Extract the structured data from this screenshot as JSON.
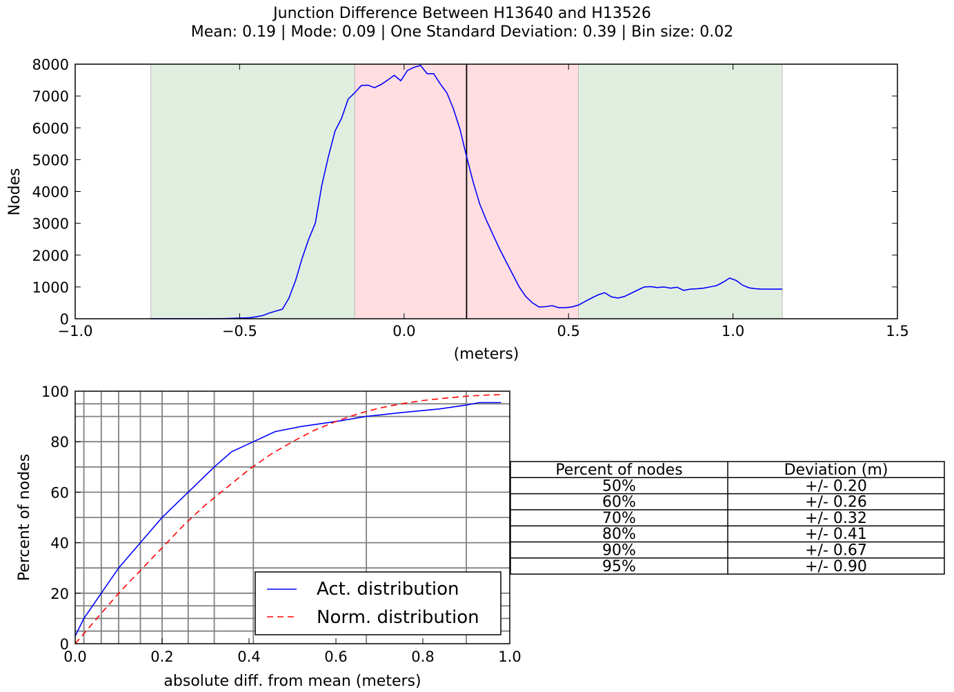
{
  "title": {
    "line1": "Junction Difference Between H13640 and H13526",
    "line2": "Mean: 0.19 | Mode: 0.09 | One Standard Deviation: 0.39 | Bin size: 0.02"
  },
  "colors": {
    "line": "#0000ff",
    "norm": "#ff0000",
    "band_outer": "#e0eee0",
    "band_inner": "#ffdde1",
    "grid": "#808080"
  },
  "chart_data": [
    {
      "type": "line",
      "name": "histogram",
      "xlabel": "(meters)",
      "ylabel": "Nodes",
      "xlim": [
        -1.0,
        1.5
      ],
      "ylim": [
        0,
        8000
      ],
      "xticks": [
        "−1.0",
        "−0.5",
        "0.0",
        "0.5",
        "1.0",
        "1.5"
      ],
      "xtick_values": [
        -1.0,
        -0.5,
        0.0,
        0.5,
        1.0,
        1.5
      ],
      "yticks": [
        "0",
        "1000",
        "2000",
        "3000",
        "4000",
        "5000",
        "6000",
        "7000",
        "8000"
      ],
      "ytick_values": [
        0,
        1000,
        2000,
        3000,
        4000,
        5000,
        6000,
        7000,
        8000
      ],
      "bands": [
        {
          "from": -0.77,
          "to": -0.15,
          "kind": "outer"
        },
        {
          "from": -0.15,
          "to": 0.53,
          "kind": "inner"
        },
        {
          "from": 0.53,
          "to": 1.15,
          "kind": "outer"
        }
      ],
      "mean_line": 0.19,
      "x": [
        -0.77,
        -0.7,
        -0.6,
        -0.55,
        -0.5,
        -0.47,
        -0.45,
        -0.43,
        -0.41,
        -0.39,
        -0.37,
        -0.35,
        -0.33,
        -0.31,
        -0.29,
        -0.27,
        -0.25,
        -0.23,
        -0.21,
        -0.19,
        -0.17,
        -0.15,
        -0.13,
        -0.11,
        -0.09,
        -0.07,
        -0.05,
        -0.03,
        -0.01,
        0.01,
        0.03,
        0.05,
        0.07,
        0.09,
        0.11,
        0.13,
        0.15,
        0.17,
        0.19,
        0.21,
        0.23,
        0.25,
        0.27,
        0.29,
        0.31,
        0.33,
        0.35,
        0.37,
        0.39,
        0.41,
        0.43,
        0.45,
        0.47,
        0.49,
        0.51,
        0.53,
        0.55,
        0.57,
        0.59,
        0.61,
        0.63,
        0.65,
        0.67,
        0.69,
        0.71,
        0.73,
        0.75,
        0.77,
        0.79,
        0.81,
        0.83,
        0.85,
        0.87,
        0.89,
        0.91,
        0.93,
        0.95,
        0.97,
        0.99,
        1.01,
        1.03,
        1.05,
        1.07,
        1.09,
        1.11,
        1.13,
        1.15
      ],
      "values": [
        0,
        0,
        0,
        5,
        20,
        30,
        60,
        100,
        180,
        240,
        300,
        650,
        1200,
        1900,
        2500,
        3000,
        4200,
        5100,
        5900,
        6300,
        6900,
        7100,
        7330,
        7340,
        7260,
        7360,
        7500,
        7650,
        7480,
        7800,
        7900,
        7960,
        7700,
        7700,
        7380,
        7100,
        6600,
        5950,
        5100,
        4300,
        3600,
        3100,
        2650,
        2200,
        1800,
        1400,
        1000,
        700,
        500,
        370,
        380,
        410,
        350,
        350,
        370,
        430,
        540,
        650,
        750,
        820,
        690,
        650,
        700,
        800,
        900,
        1000,
        1010,
        980,
        1000,
        960,
        990,
        890,
        930,
        940,
        960,
        1000,
        1040,
        1150,
        1280,
        1200,
        1050,
        970,
        940,
        930,
        930,
        930,
        930
      ]
    },
    {
      "type": "line",
      "name": "cumulative",
      "xlabel": "absolute diff. from mean (meters)",
      "ylabel": "Percent of nodes",
      "xlim": [
        0.0,
        1.0
      ],
      "ylim": [
        0,
        100
      ],
      "xticks": [
        "0.0",
        "0.2",
        "0.4",
        "0.6",
        "0.8",
        "1.0"
      ],
      "xtick_values": [
        0.0,
        0.2,
        0.4,
        0.6,
        0.8,
        1.0
      ],
      "yticks": [
        "0",
        "20",
        "40",
        "60",
        "80",
        "100"
      ],
      "ytick_values": [
        0,
        20,
        40,
        60,
        80,
        100
      ],
      "vgrid": [
        0.02,
        0.06,
        0.1,
        0.15,
        0.2,
        0.26,
        0.32,
        0.41,
        0.67,
        0.9
      ],
      "hgrid": [
        5,
        10,
        15,
        20,
        30,
        40,
        50,
        60,
        70,
        80,
        90,
        95
      ],
      "series": [
        {
          "name": "Act. distribution",
          "style": "solid",
          "x": [
            0.0,
            0.02,
            0.06,
            0.1,
            0.15,
            0.2,
            0.26,
            0.32,
            0.36,
            0.41,
            0.46,
            0.52,
            0.6,
            0.67,
            0.75,
            0.84,
            0.9,
            0.93,
            0.98
          ],
          "values": [
            3,
            10,
            20,
            30,
            40,
            50,
            60,
            70,
            76,
            80,
            84,
            86,
            88,
            90,
            91.5,
            93,
            94.5,
            95.5,
            95.5
          ]
        },
        {
          "name": "Norm. distribution",
          "style": "dashed",
          "x": [
            0.0,
            0.02,
            0.05,
            0.1,
            0.15,
            0.2,
            0.25,
            0.3,
            0.35,
            0.4,
            0.45,
            0.5,
            0.55,
            0.6,
            0.65,
            0.7,
            0.75,
            0.8,
            0.85,
            0.9,
            0.95,
            0.98
          ],
          "values": [
            0,
            4,
            10,
            20,
            29,
            38,
            47,
            55,
            62,
            69,
            75,
            80,
            84.5,
            88,
            91,
            93.3,
            95,
            96.3,
            97.2,
            98,
            98.5,
            98.6
          ]
        }
      ]
    }
  ],
  "legend": {
    "act_label": "Act. distribution",
    "norm_label": "Norm. distribution"
  },
  "table": {
    "headers": [
      "Percent of nodes",
      "Deviation (m)"
    ],
    "rows": [
      [
        "50%",
        "+/- 0.20"
      ],
      [
        "60%",
        "+/- 0.26"
      ],
      [
        "70%",
        "+/- 0.32"
      ],
      [
        "80%",
        "+/- 0.41"
      ],
      [
        "90%",
        "+/- 0.67"
      ],
      [
        "95%",
        "+/- 0.90"
      ]
    ]
  }
}
